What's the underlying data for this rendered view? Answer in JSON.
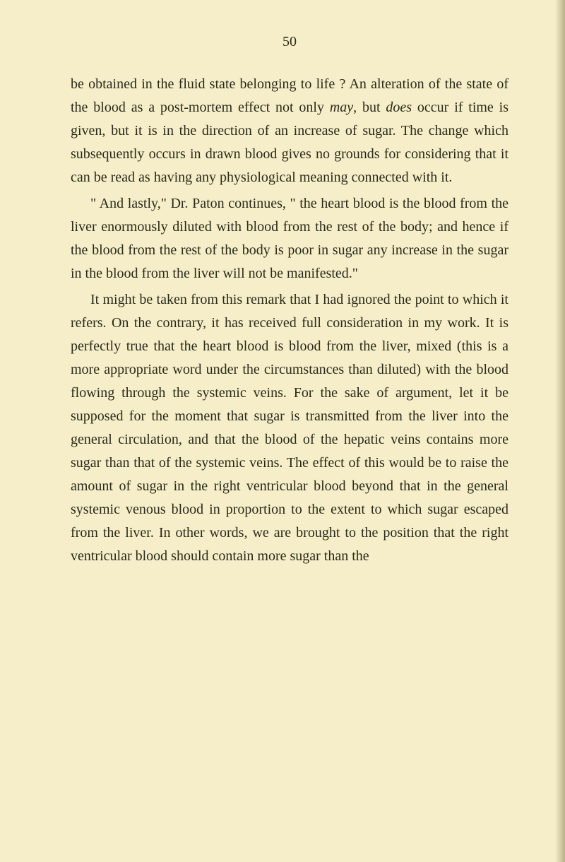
{
  "page_number": "50",
  "paragraphs": [
    {
      "text": "be obtained in the fluid state belonging to life ? An alteration of the state of the blood as a post-mortem effect not only ",
      "italic1": "may",
      "text2": ", but ",
      "italic2": "does",
      "text3": " occur if time is given, but it is in the direction of an increase of sugar. The change which subsequently occurs in drawn blood gives no grounds for considering that it can be read as having any physiological meaning connected with it.",
      "indent": false
    },
    {
      "text": "\" And lastly,\" Dr. Paton continues, \" the heart blood is the blood from the liver enormously diluted with blood from the rest of the body; and hence if the blood from the rest of the body is poor in sugar any increase in the sugar in the blood from the liver will not be manifested.\"",
      "indent": true
    },
    {
      "text": "It might be taken from this remark that I had ignored the point to which it refers. On the contrary, it has received full consideration in my work. It is perfectly true that the heart blood is blood from the liver, mixed (this is a more appropriate word under the circumstances than diluted) with the blood flowing through the systemic veins. For the sake of argument, let it be supposed for the moment that sugar is transmitted from the liver into the general circulation, and that the blood of the hepatic veins contains more sugar than that of the systemic veins. The effect of this would be to raise the amount of sugar in the right ventricular blood beyond that in the general systemic venous blood in proportion to the extent to which sugar escaped from the liver. In other words, we are brought to the position that the right ventricular blood should contain more sugar than the",
      "indent": true
    }
  ],
  "colors": {
    "background": "#f5eec9",
    "text": "#2a2a1a"
  },
  "typography": {
    "body_fontsize": 20,
    "line_height": 1.65,
    "font_family": "Georgia, Times New Roman, serif"
  }
}
